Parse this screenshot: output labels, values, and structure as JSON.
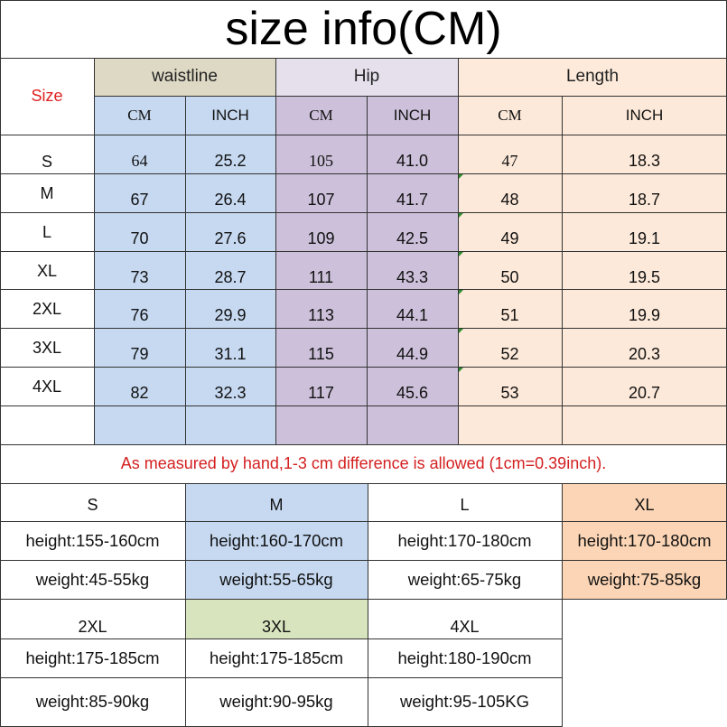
{
  "title": "size info(CM)",
  "size_label": "Size",
  "groups": [
    "waistline",
    "Hip",
    "Length"
  ],
  "units": [
    "CM",
    "INCH",
    "CM",
    "INCH",
    "CM",
    "INCH"
  ],
  "rows": [
    {
      "size": "S",
      "values": [
        "64",
        "25.2",
        "105",
        "41.0",
        "47",
        "18.3"
      ]
    },
    {
      "size": "M",
      "values": [
        "67",
        "26.4",
        "107",
        "41.7",
        "48",
        "18.7"
      ]
    },
    {
      "size": "L",
      "values": [
        "70",
        "27.6",
        "109",
        "42.5",
        "49",
        "19.1"
      ]
    },
    {
      "size": "XL",
      "values": [
        "73",
        "28.7",
        "111",
        "43.3",
        "50",
        "19.5"
      ]
    },
    {
      "size": "2XL",
      "values": [
        "76",
        "29.9",
        "113",
        "44.1",
        "51",
        "19.9"
      ]
    },
    {
      "size": "3XL",
      "values": [
        "79",
        "31.1",
        "115",
        "44.9",
        "52",
        "20.3"
      ]
    },
    {
      "size": "4XL",
      "values": [
        "82",
        "32.3",
        "117",
        "45.6",
        "53",
        "20.7"
      ]
    }
  ],
  "note": "As measured by hand,1-3 cm difference is allowed (1cm=0.39inch).",
  "recommendations": [
    {
      "size": "S",
      "height": "height:155-160cm",
      "weight": "weight:45-55kg"
    },
    {
      "size": "M",
      "height": "height:160-170cm",
      "weight": "weight:55-65kg"
    },
    {
      "size": "L",
      "height": "height:170-180cm",
      "weight": "weight:65-75kg"
    },
    {
      "size": "XL",
      "height": "height:170-180cm",
      "weight": "weight:75-85kg"
    },
    {
      "size": "2XL",
      "height": "height:175-185cm",
      "weight": "weight:85-90kg"
    },
    {
      "size": "3XL",
      "height": "height:175-185cm",
      "weight": "weight:90-95kg"
    },
    {
      "size": "4XL",
      "height": "height:180-190cm",
      "weight": "weight:95-105KG"
    }
  ],
  "colors": {
    "waist_header": "#ddd9c4",
    "waist_columns": "#c6d9f1",
    "hip_header": "#e5e0ec",
    "hip_columns": "#ccc0da",
    "length_header": "#fdeada",
    "length_columns": "#fde9d9",
    "m_block": "#c6d9f1",
    "xl_block": "#fbd5b5",
    "3xl_block": "#d7e4bd",
    "size_label": "#e02020",
    "note_text": "#d42020"
  }
}
